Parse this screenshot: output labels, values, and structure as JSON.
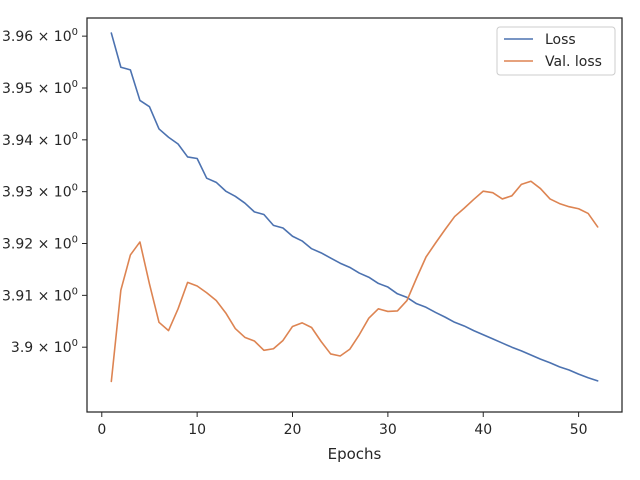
{
  "chart_data": {
    "type": "line",
    "xlabel": "Epochs",
    "ylabel": "",
    "xlim": [
      -1.55,
      54.55
    ],
    "ylim": [
      3.8875,
      3.9635
    ],
    "x_ticks": [
      0,
      10,
      20,
      30,
      40,
      50
    ],
    "x_tick_labels": [
      "0",
      "10",
      "20",
      "30",
      "40",
      "50"
    ],
    "y_ticks": [
      3.9,
      3.91,
      3.92,
      3.93,
      3.94,
      3.95,
      3.96
    ],
    "y_tick_labels": [
      {
        "base": "3.9 × 10",
        "exp": "0"
      },
      {
        "base": "3.91 × 10",
        "exp": "0"
      },
      {
        "base": "3.92 × 10",
        "exp": "0"
      },
      {
        "base": "3.93 × 10",
        "exp": "0"
      },
      {
        "base": "3.94 × 10",
        "exp": "0"
      },
      {
        "base": "3.95 × 10",
        "exp": "0"
      },
      {
        "base": "3.96 × 10",
        "exp": "0"
      }
    ],
    "grid": false,
    "legend_position": "top-right",
    "x": [
      1,
      2,
      3,
      4,
      5,
      6,
      7,
      8,
      9,
      10,
      11,
      12,
      13,
      14,
      15,
      16,
      17,
      18,
      19,
      20,
      21,
      22,
      23,
      24,
      25,
      26,
      27,
      28,
      29,
      30,
      31,
      32,
      33,
      34,
      35,
      36,
      37,
      38,
      39,
      40,
      41,
      42,
      43,
      44,
      45,
      46,
      47,
      48,
      49,
      50,
      51,
      52
    ],
    "series": [
      {
        "name": "Loss",
        "color": "#4c72b0",
        "values": [
          3.9606,
          3.954,
          3.9535,
          3.9476,
          3.9464,
          3.9421,
          3.9405,
          3.9392,
          3.9367,
          3.9364,
          3.9326,
          3.9318,
          3.9301,
          3.9291,
          3.9278,
          3.9261,
          3.9256,
          3.9235,
          3.923,
          3.9214,
          3.9205,
          3.919,
          3.9182,
          3.9172,
          3.9162,
          3.9154,
          3.9143,
          3.9135,
          3.9123,
          3.9116,
          3.9103,
          3.9096,
          3.9084,
          3.9077,
          3.9067,
          3.9058,
          3.9048,
          3.9041,
          3.9032,
          3.9024,
          3.9016,
          3.9008,
          3.9,
          3.8993,
          3.8985,
          3.8977,
          3.897,
          3.8962,
          3.8956,
          3.8948,
          3.8941,
          3.8935
        ]
      },
      {
        "name": "Val. loss",
        "color": "#dd8452",
        "values": [
          3.8934,
          3.911,
          3.9178,
          3.9203,
          3.9122,
          3.9048,
          3.9032,
          3.9074,
          3.9125,
          3.9118,
          3.9105,
          3.909,
          3.9066,
          3.9036,
          3.9019,
          3.9012,
          3.8994,
          3.8997,
          3.9013,
          3.904,
          3.9047,
          3.9038,
          3.9011,
          3.8987,
          3.8983,
          3.8996,
          3.9024,
          3.9056,
          3.9074,
          3.9069,
          3.907,
          3.909,
          3.9133,
          3.9174,
          3.9201,
          3.9227,
          3.9252,
          3.9268,
          3.9285,
          3.9301,
          3.9298,
          3.9286,
          3.9292,
          3.9314,
          3.932,
          3.9306,
          3.9286,
          3.9277,
          3.9271,
          3.9267,
          3.9258,
          3.9232
        ]
      }
    ]
  }
}
